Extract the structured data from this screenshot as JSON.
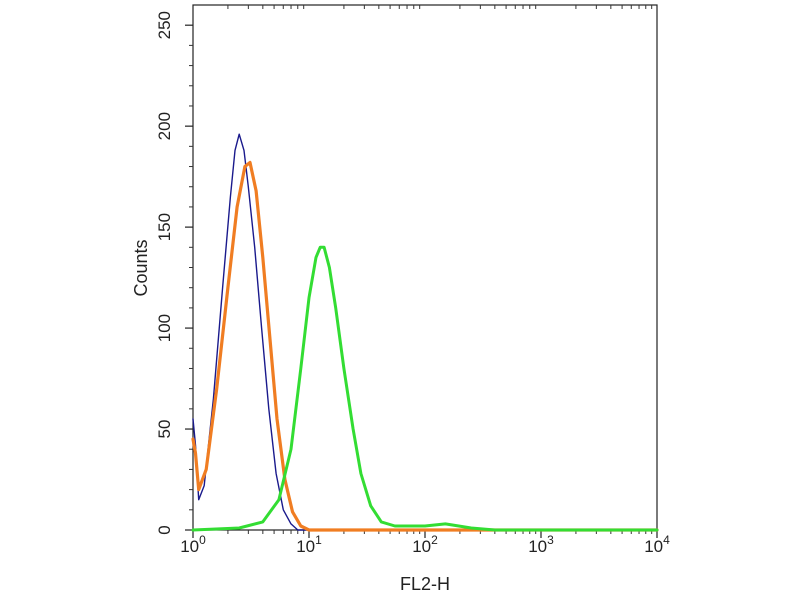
{
  "chart_data": {
    "type": "line",
    "title": "",
    "xlabel": "FL2-H",
    "ylabel": "Counts",
    "xscale": "log",
    "xlim": [
      1,
      10000
    ],
    "ylim": [
      0,
      260
    ],
    "grid": false,
    "legend": "none",
    "x_ticks": [
      {
        "base": "10",
        "exp": "0",
        "value": 1
      },
      {
        "base": "10",
        "exp": "1",
        "value": 10
      },
      {
        "base": "10",
        "exp": "2",
        "value": 100
      },
      {
        "base": "10",
        "exp": "3",
        "value": 1000
      },
      {
        "base": "10",
        "exp": "4",
        "value": 10000
      }
    ],
    "y_ticks": [
      {
        "label": "0",
        "value": 0
      },
      {
        "label": "50",
        "value": 50
      },
      {
        "label": "100",
        "value": 100
      },
      {
        "label": "150",
        "value": 150
      },
      {
        "label": "200",
        "value": 200
      },
      {
        "label": "250",
        "value": 250
      }
    ],
    "series": [
      {
        "color": "#1a1a8c",
        "points": [
          [
            1,
            55
          ],
          [
            1.05,
            42
          ],
          [
            1.12,
            15
          ],
          [
            1.25,
            22
          ],
          [
            1.5,
            65
          ],
          [
            1.8,
            120
          ],
          [
            2.1,
            165
          ],
          [
            2.3,
            188
          ],
          [
            2.5,
            196
          ],
          [
            2.75,
            188
          ],
          [
            3.0,
            170
          ],
          [
            3.4,
            140
          ],
          [
            3.9,
            100
          ],
          [
            4.5,
            60
          ],
          [
            5.2,
            28
          ],
          [
            6.0,
            10
          ],
          [
            7.0,
            3
          ],
          [
            8.0,
            0
          ],
          [
            10000,
            0
          ]
        ]
      },
      {
        "color": "#f07d22",
        "points": [
          [
            1,
            45
          ],
          [
            1.05,
            38
          ],
          [
            1.12,
            20
          ],
          [
            1.3,
            30
          ],
          [
            1.6,
            70
          ],
          [
            2.0,
            120
          ],
          [
            2.4,
            160
          ],
          [
            2.8,
            180
          ],
          [
            3.1,
            182
          ],
          [
            3.5,
            168
          ],
          [
            4.0,
            135
          ],
          [
            4.6,
            95
          ],
          [
            5.3,
            55
          ],
          [
            6.2,
            25
          ],
          [
            7.2,
            9
          ],
          [
            8.5,
            2
          ],
          [
            10,
            0
          ],
          [
            10000,
            0
          ]
        ]
      },
      {
        "color": "#33dd33",
        "points": [
          [
            1,
            0
          ],
          [
            2.5,
            1
          ],
          [
            4.0,
            4
          ],
          [
            5.5,
            15
          ],
          [
            7.0,
            40
          ],
          [
            8.5,
            80
          ],
          [
            10,
            115
          ],
          [
            11.5,
            135
          ],
          [
            12.5,
            140
          ],
          [
            13.5,
            140
          ],
          [
            15,
            130
          ],
          [
            17,
            110
          ],
          [
            20,
            80
          ],
          [
            24,
            50
          ],
          [
            28,
            28
          ],
          [
            34,
            12
          ],
          [
            42,
            4
          ],
          [
            55,
            2
          ],
          [
            100,
            2
          ],
          [
            150,
            3
          ],
          [
            250,
            1
          ],
          [
            400,
            0
          ],
          [
            10000,
            0
          ]
        ]
      }
    ]
  }
}
